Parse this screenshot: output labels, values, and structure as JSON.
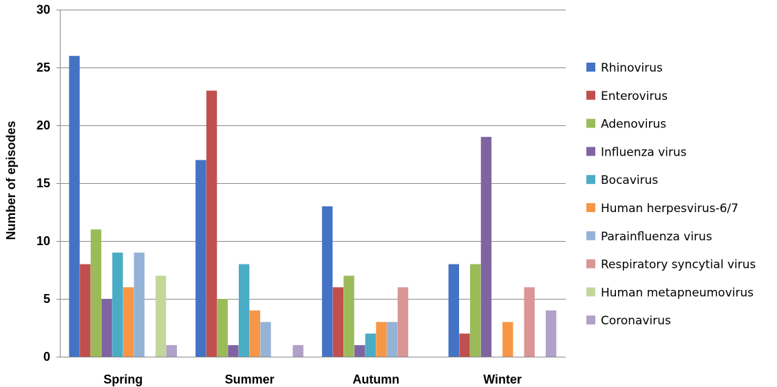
{
  "chart_data": {
    "type": "bar",
    "ylabel": "Number of episodes",
    "xlabel": "",
    "ylim": [
      0,
      30
    ],
    "yticks": [
      0,
      5,
      10,
      15,
      20,
      25,
      30
    ],
    "grid": true,
    "legend_position": "right",
    "categories": [
      "Spring",
      "Summer",
      "Autumn",
      "Winter"
    ],
    "series": [
      {
        "name": "Rhinovirus",
        "color": "#4472C4",
        "values": [
          26,
          17,
          13,
          8
        ]
      },
      {
        "name": "Enterovirus",
        "color": "#C0504D",
        "values": [
          8,
          23,
          6,
          2
        ]
      },
      {
        "name": "Adenovirus",
        "color": "#9BBB59",
        "values": [
          11,
          5,
          7,
          8
        ]
      },
      {
        "name": "Influenza virus",
        "color": "#8064A2",
        "values": [
          5,
          1,
          1,
          19
        ]
      },
      {
        "name": "Bocavirus",
        "color": "#4BACC6",
        "values": [
          9,
          8,
          2,
          0
        ]
      },
      {
        "name": "Human herpesvirus-6/7",
        "color": "#F79646",
        "values": [
          6,
          4,
          3,
          3
        ]
      },
      {
        "name": "Parainfluenza virus",
        "color": "#95B3D7",
        "values": [
          9,
          3,
          3,
          0
        ]
      },
      {
        "name": "Respiratory syncytial virus",
        "color": "#DA9694",
        "values": [
          0,
          0,
          6,
          6
        ]
      },
      {
        "name": "Human metapneumovirus",
        "color": "#C4D79B",
        "values": [
          7,
          0,
          0,
          0
        ]
      },
      {
        "name": "Coronavirus",
        "color": "#B1A0C7",
        "values": [
          1,
          1,
          0,
          4
        ]
      }
    ]
  }
}
